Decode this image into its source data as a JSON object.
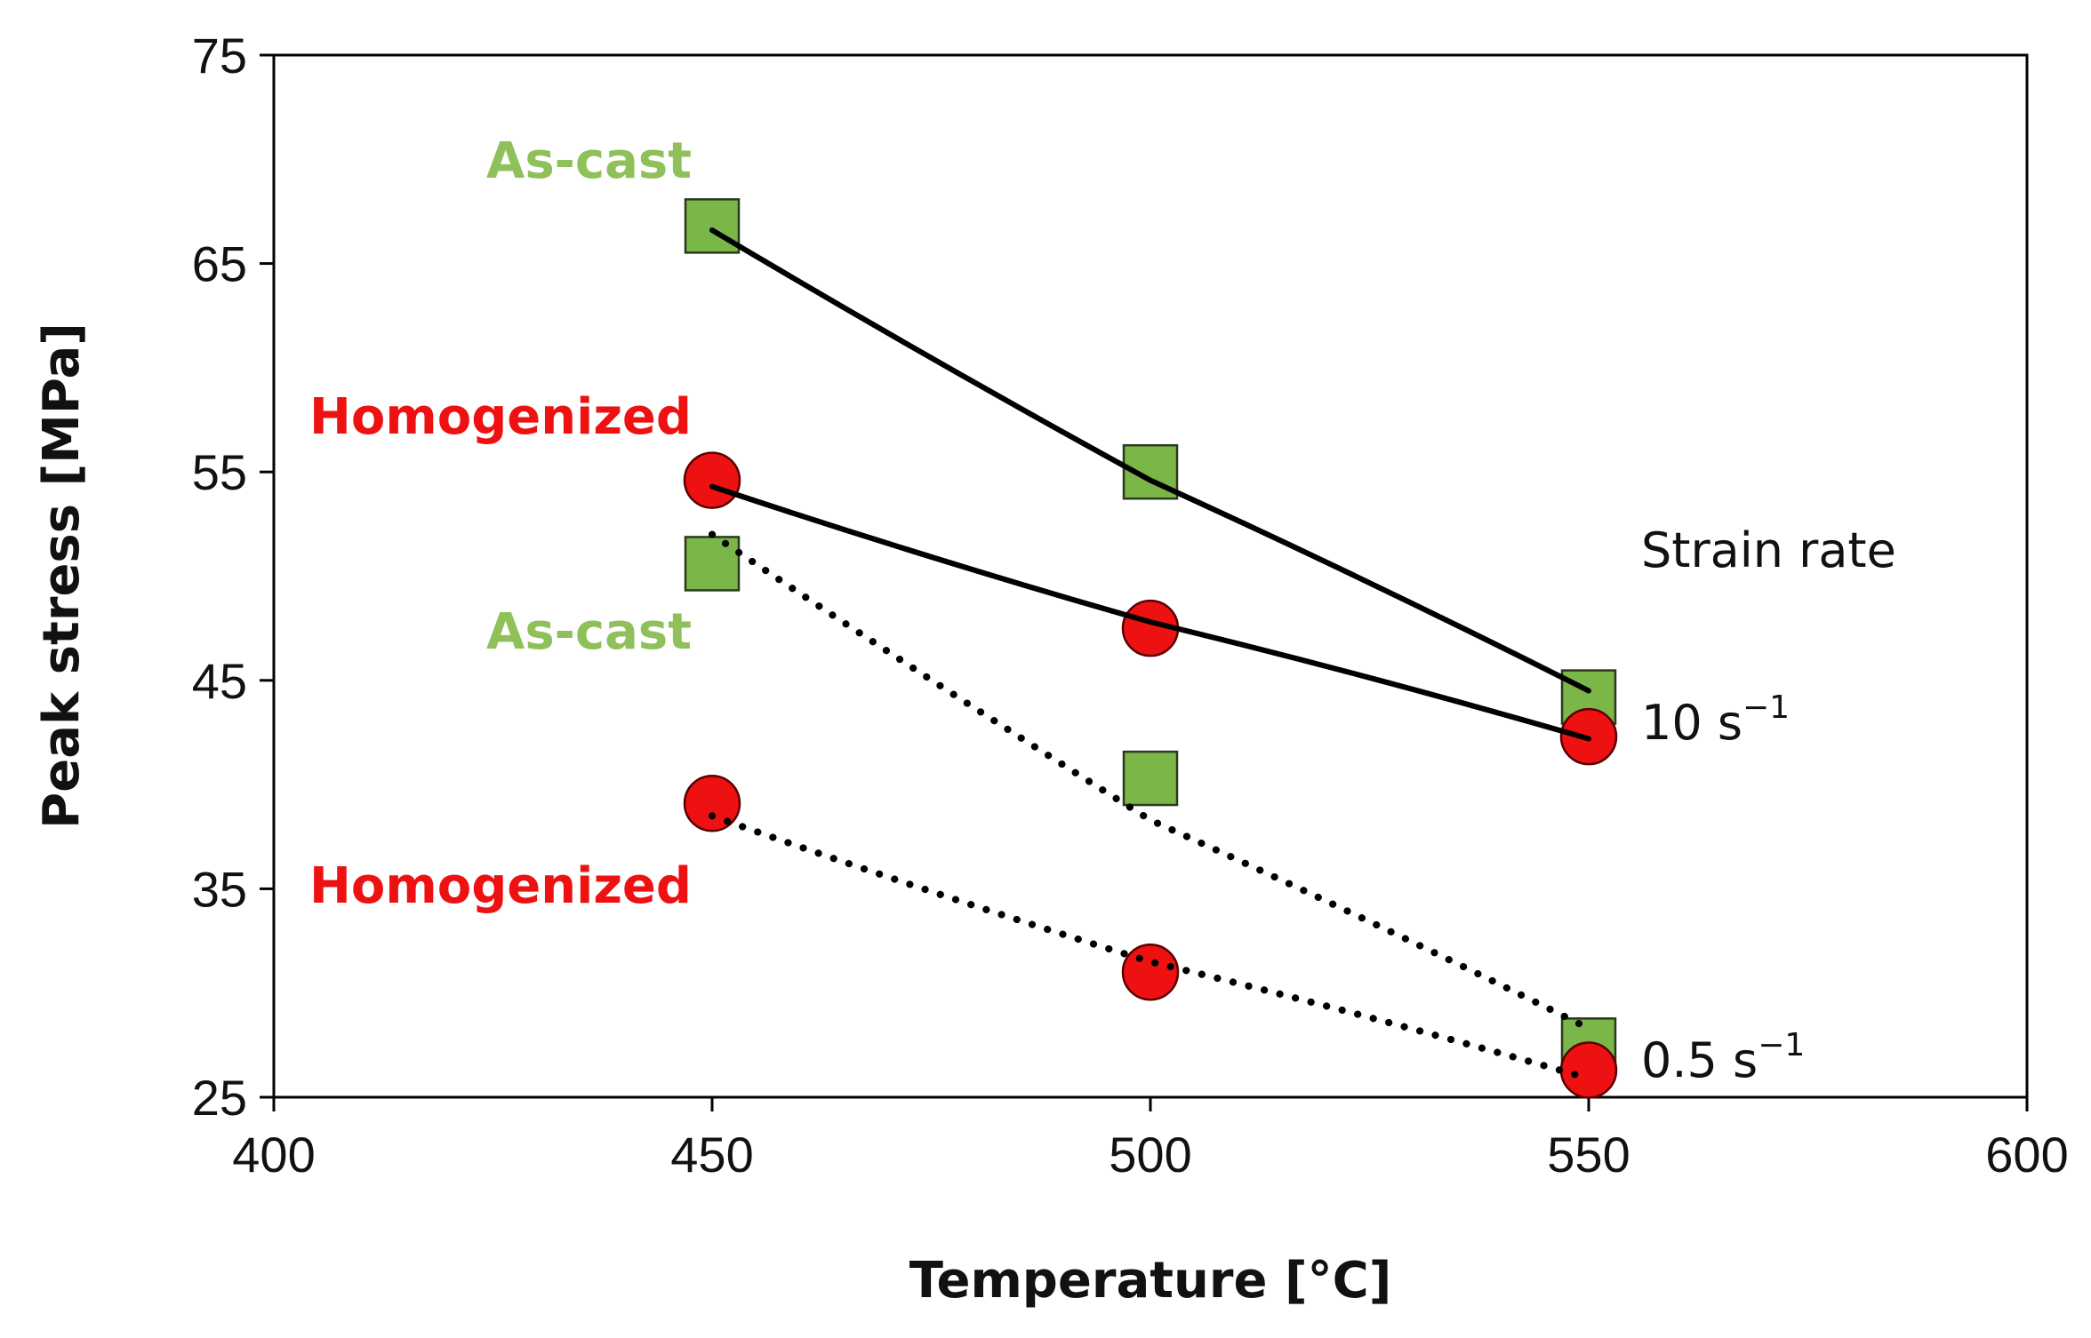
{
  "chart_data": {
    "type": "scatter",
    "title": "",
    "xlabel": "Temperature [°C]",
    "ylabel": "Peak stress [MPa]",
    "xlim": [
      400,
      600
    ],
    "ylim": [
      25,
      75
    ],
    "xticks": [
      400,
      450,
      500,
      550,
      600
    ],
    "yticks": [
      25,
      35,
      45,
      55,
      65,
      75
    ],
    "grid": false,
    "legend": "none",
    "series": [
      {
        "label": "As-cast",
        "strain_rate": "10 s⁻¹",
        "marker": "square",
        "color": "#7ab648",
        "line": "solid",
        "x": [
          450,
          500,
          550
        ],
        "y": [
          66.8,
          55.0,
          44.2
        ],
        "line_y": [
          66.6,
          54.6,
          44.5
        ]
      },
      {
        "label": "Homogenized",
        "strain_rate": "10 s⁻¹",
        "marker": "circle",
        "color": "#ee1111",
        "line": "solid",
        "x": [
          450,
          500,
          550
        ],
        "y": [
          54.6,
          47.5,
          42.3
        ],
        "line_y": [
          54.3,
          47.8,
          42.2
        ]
      },
      {
        "label": "As-cast",
        "strain_rate": "0.5 s⁻¹",
        "marker": "square",
        "color": "#7ab648",
        "line": "dotted",
        "x": [
          450,
          500,
          550
        ],
        "y": [
          50.6,
          40.3,
          27.5
        ],
        "line_y": [
          52.0,
          38.3,
          28.3
        ]
      },
      {
        "label": "Homogenized",
        "strain_rate": "0.5 s⁻¹",
        "marker": "circle",
        "color": "#ee1111",
        "line": "dotted",
        "x": [
          450,
          500,
          550
        ],
        "y": [
          39.1,
          31.0,
          26.3
        ],
        "line_y": [
          38.5,
          31.5,
          25.9
        ]
      }
    ],
    "annotations": {
      "strain_rate_heading": "Strain rate",
      "rate_high": "10 s",
      "rate_low": "0.5 s",
      "exponent": "−1",
      "as_cast_top": "As-cast",
      "homogenized_top": "Homogenized",
      "as_cast_bottom": "As-cast",
      "homogenized_bottom": "Homogenized"
    }
  }
}
